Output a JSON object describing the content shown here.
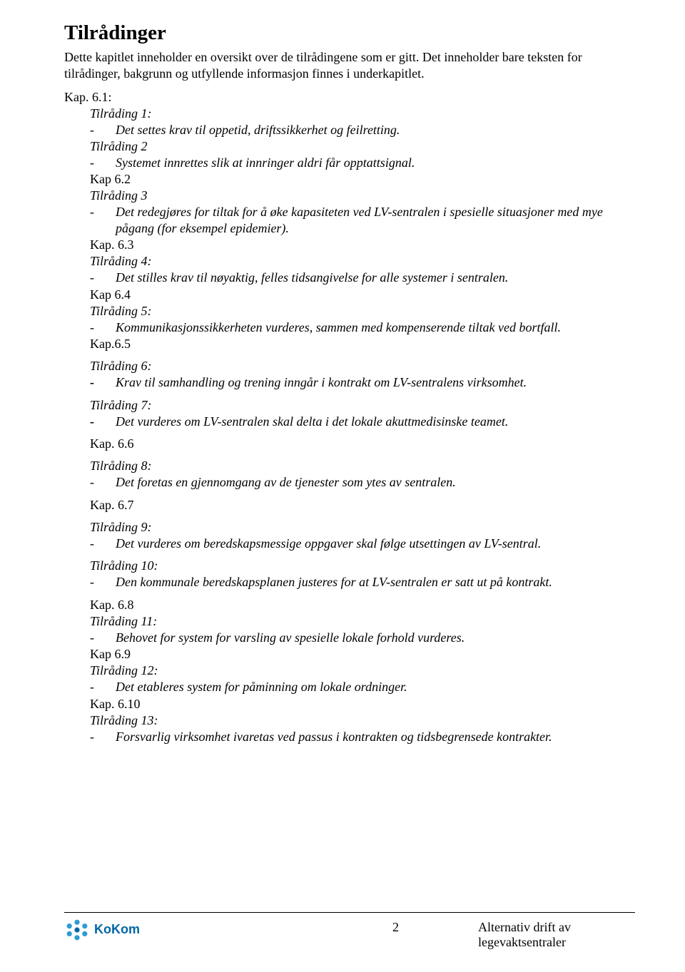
{
  "title": "Tilrådinger",
  "intro": "Dette kapitlet inneholder en oversikt over de tilrådingene som er gitt. Det inneholder bare teksten for tilrådinger, bakgrunn og utfyllende informasjon finnes i underkapitlet.",
  "sections": [
    {
      "chapter": "Kap. 6.1:",
      "chapterIndent": false,
      "items": [
        {
          "label": "Tilråding 1:",
          "text": "Det settes krav til oppetid, driftssikkerhet og feilretting.",
          "boldDash": false,
          "dash": "-"
        },
        {
          "label": "Tilråding 2",
          "text": "Systemet innrettes slik at innringer aldri får opptattsignal.",
          "boldDash": false,
          "dash": "-"
        }
      ]
    },
    {
      "chapter": "Kap 6.2",
      "chapterIndent": true,
      "items": [
        {
          "label": "Tilråding 3",
          "text": "Det redegjøres for tiltak for å øke kapasiteten ved LV-sentralen i spesielle situasjoner med mye pågang (for eksempel epidemier).",
          "boldDash": false,
          "dash": "-"
        }
      ]
    },
    {
      "chapter": "Kap. 6.3",
      "chapterIndent": true,
      "items": [
        {
          "label": "Tilråding 4:",
          "text": "Det stilles krav til nøyaktig, felles tidsangivelse for alle systemer i sentralen.",
          "boldDash": false,
          "dash": "-"
        }
      ]
    },
    {
      "chapter": "Kap 6.4",
      "chapterIndent": true,
      "items": [
        {
          "label": "Tilråding 5:",
          "text": "Kommunikasjonssikkerheten vurderes, sammen med kompenserende tiltak ved bortfall.",
          "boldDash": false,
          "dash": "-"
        }
      ]
    },
    {
      "chapter": "Kap.6.5",
      "chapterIndent": true,
      "items": [
        {
          "label": "Tilråding 6:",
          "labelSpaced": true,
          "text": "Krav til samhandling og trening inngår i kontrakt om LV-sentralens virksomhet.",
          "boldDash": true,
          "dash": "-",
          "spacedAfter": true
        },
        {
          "label": "Tilråding 7:",
          "text": "Det vurderes om LV-sentralen skal delta i det lokale akuttmedisinske teamet.",
          "boldDash": true,
          "dash": "-",
          "spacedAfter": true
        }
      ]
    },
    {
      "chapter": "Kap. 6.6",
      "chapterIndent": true,
      "items": [
        {
          "label": "Tilråding 8:",
          "labelSpaced": true,
          "text": "Det foretas en gjennomgang av de tjenester som ytes av sentralen.",
          "boldDash": false,
          "dash": "-",
          "spacedAfter": true
        }
      ]
    },
    {
      "chapter": "Kap. 6.7",
      "chapterIndent": true,
      "items": [
        {
          "label": "Tilråding 9:",
          "labelSpaced": true,
          "text": "Det vurderes om beredskapsmessige oppgaver skal følge utsettingen av LV-sentral.",
          "boldDash": false,
          "dash": "-",
          "spacedAfter": true
        },
        {
          "label": "Tilråding 10:",
          "text": "Den kommunale beredskapsplanen justeres for at LV-sentralen er satt ut på kontrakt.",
          "boldDash": false,
          "dash": "-",
          "spacedAfter": true
        }
      ]
    },
    {
      "chapter": "Kap. 6.8",
      "chapterIndent": true,
      "items": [
        {
          "label": "Tilråding 11:",
          "text": "Behovet for system for varsling av spesielle lokale forhold vurderes.",
          "boldDash": false,
          "dash": "-"
        }
      ]
    },
    {
      "chapter": "Kap 6.9",
      "chapterIndent": true,
      "items": [
        {
          "label": "Tilråding 12:",
          "text": "Det etableres system for påminning om lokale ordninger.",
          "boldDash": false,
          "dash": "-"
        }
      ]
    },
    {
      "chapter": "Kap. 6.10",
      "chapterIndent": true,
      "items": [
        {
          "label": "Tilråding 13:",
          "text": "Forsvarlig virksomhet ivaretas ved passus i kontrakten og tidsbegrensede kontrakter.",
          "boldDash": false,
          "dash": "-"
        }
      ]
    }
  ],
  "footer": {
    "pageNumber": "2",
    "rightLine1": "Alternativ drift av",
    "rightLine2": "legevaktsentraler",
    "logoText": "KoKom",
    "logoColor": "#0066a4",
    "logoIconColor": "#2e9bd6"
  },
  "style": {
    "pageWidth": 960,
    "pageHeight": 1363,
    "background": "#ffffff",
    "fontFamily": "Times New Roman, Times, serif",
    "baseFontSize": 18,
    "titleFontSize": 29,
    "textColor": "#000000"
  }
}
